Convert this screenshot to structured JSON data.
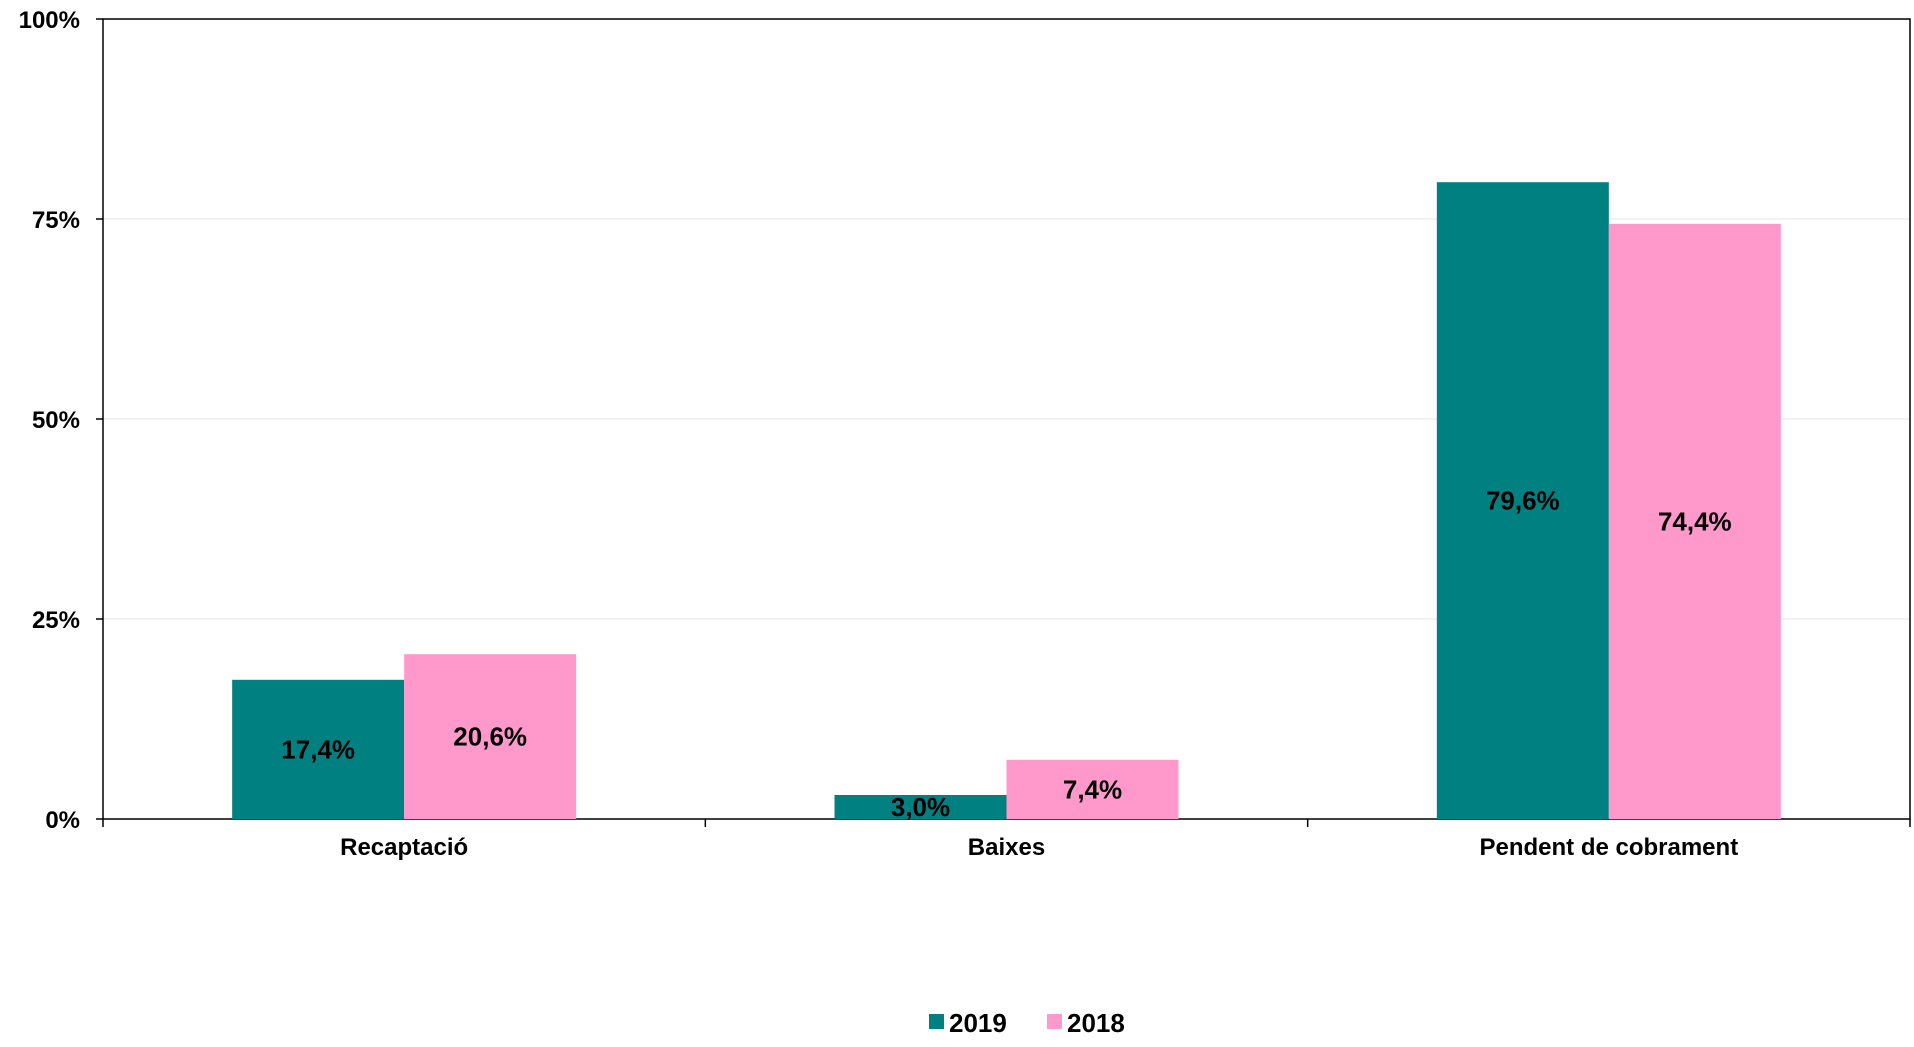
{
  "chart_data": {
    "type": "bar",
    "title": "",
    "xlabel": "",
    "ylabel": "",
    "categories": [
      "Recaptació",
      "Baixes",
      "Pendent de cobrament"
    ],
    "series": [
      {
        "name": "2019",
        "color": "#008080",
        "values": [
          17.4,
          3.0,
          79.6
        ],
        "labels": [
          "17,4%",
          "3,0%",
          "79,6%"
        ]
      },
      {
        "name": "2018",
        "color": "#FF99CC",
        "values": [
          20.6,
          7.4,
          74.4
        ],
        "labels": [
          "20,6%",
          "7,4%",
          "74,4%"
        ]
      }
    ],
    "ylim": [
      0,
      100
    ],
    "yticks": [
      0,
      25,
      50,
      75,
      100
    ],
    "ytick_labels": [
      "0%",
      "25%",
      "50%",
      "75%",
      "100%"
    ],
    "grid": true,
    "legend_position": "bottom-center"
  }
}
